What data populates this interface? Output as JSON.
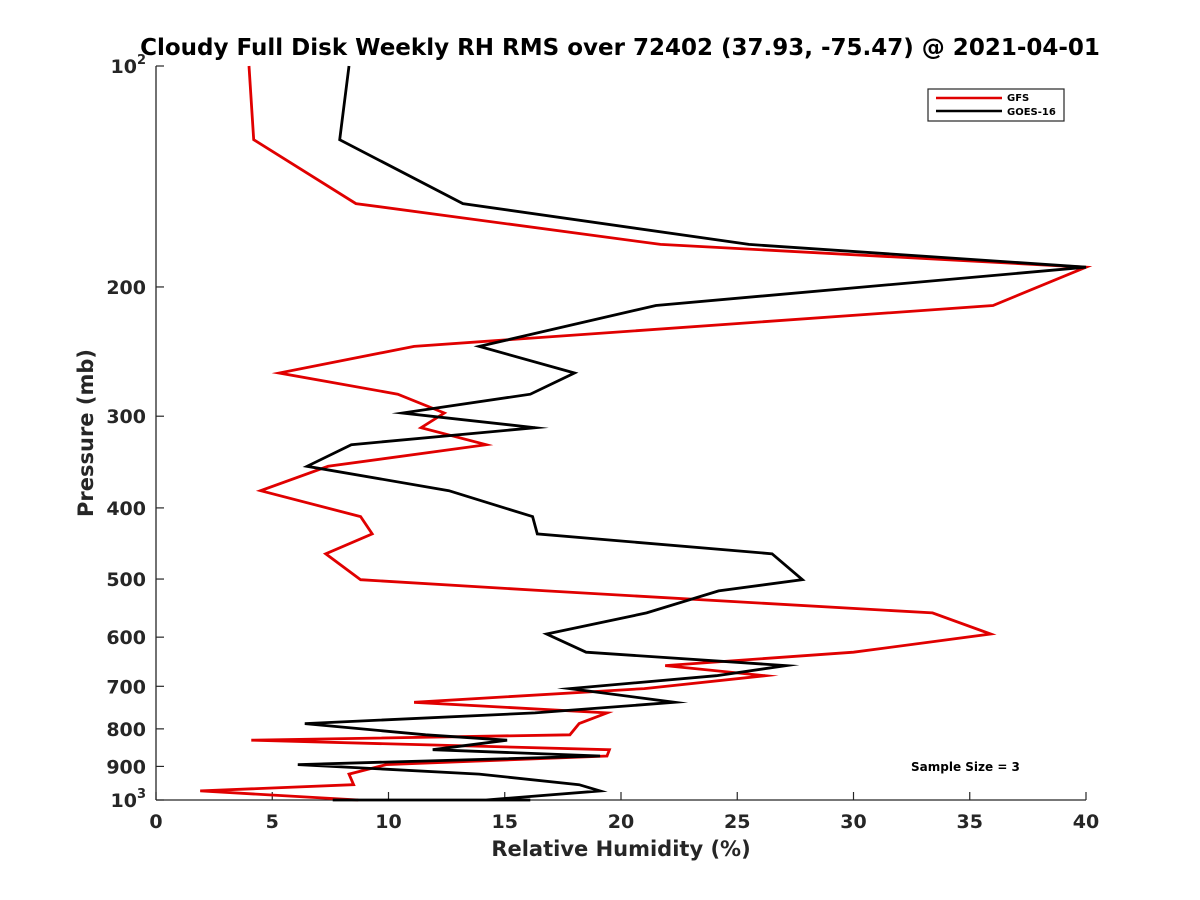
{
  "chart_data": {
    "type": "line",
    "title": "Cloudy Full Disk Weekly RH RMS over 72402 (37.93, -75.47) @ 2021-04-01",
    "xlabel": "Relative Humidity (%)",
    "ylabel": "Pressure (mb)",
    "xlim": [
      0,
      40
    ],
    "ylim": [
      100,
      1000
    ],
    "yscale": "log",
    "yreversed": true,
    "xticks": [
      0,
      5,
      10,
      15,
      20,
      25,
      30,
      35,
      40
    ],
    "yticks": [
      {
        "value": 100,
        "label": "10",
        "sup": "2"
      },
      {
        "value": 200,
        "label": "200"
      },
      {
        "value": 300,
        "label": "300"
      },
      {
        "value": 400,
        "label": "400"
      },
      {
        "value": 500,
        "label": "500"
      },
      {
        "value": 600,
        "label": "600"
      },
      {
        "value": 700,
        "label": "700"
      },
      {
        "value": 800,
        "label": "800"
      },
      {
        "value": 900,
        "label": "900"
      },
      {
        "value": 1000,
        "label": "10",
        "sup": "3"
      }
    ],
    "grid": false,
    "legend_position": "top-right",
    "annotation": "Sample Size = 3",
    "series": [
      {
        "name": "GFS",
        "color": "#e00000",
        "x": [
          4.0,
          4.2,
          8.6,
          21.7,
          40.0,
          40.0,
          36.0,
          11.1,
          5.3,
          10.4,
          12.4,
          11.4,
          14.2,
          7.4,
          4.5,
          8.8,
          9.3,
          7.3,
          8.8,
          16.8,
          33.4,
          35.9,
          30.0,
          21.9,
          26.2,
          21.0,
          11.1,
          19.4,
          18.2,
          17.8,
          4.1,
          19.5,
          19.4,
          9.9,
          8.3,
          8.5,
          1.9,
          8.7
        ],
        "y": [
          100,
          126,
          154,
          175,
          188,
          188,
          212,
          241,
          262,
          280,
          297,
          311,
          328,
          351,
          379,
          411,
          434,
          462,
          501,
          519,
          556,
          594,
          629,
          656,
          677,
          705,
          736,
          761,
          787,
          815,
          829,
          854,
          871,
          895,
          922,
          953,
          972,
          1000
        ]
      },
      {
        "name": "GOES-16",
        "color": "#000000",
        "x": [
          8.3,
          7.9,
          13.2,
          25.5,
          40.0,
          40.0,
          21.5,
          13.9,
          18.0,
          16.1,
          10.6,
          16.3,
          8.4,
          6.5,
          12.6,
          16.2,
          16.4,
          26.5,
          27.8,
          24.2,
          21.1,
          16.8,
          18.5,
          27.1,
          24.1,
          17.8,
          22.3,
          16.3,
          6.4,
          11.6,
          15.1,
          11.9,
          19.1,
          6.1,
          13.9,
          18.2,
          19.1,
          14.2,
          16.1,
          13.2,
          7.6,
          10.8
        ],
        "y": [
          100,
          126,
          154,
          175,
          188,
          188,
          212,
          241,
          262,
          280,
          297,
          311,
          328,
          351,
          379,
          411,
          434,
          462,
          501,
          519,
          556,
          594,
          629,
          656,
          677,
          705,
          736,
          761,
          787,
          815,
          829,
          854,
          871,
          895,
          922,
          953,
          972,
          1000,
          1000,
          1000,
          1000,
          1000
        ]
      }
    ]
  }
}
